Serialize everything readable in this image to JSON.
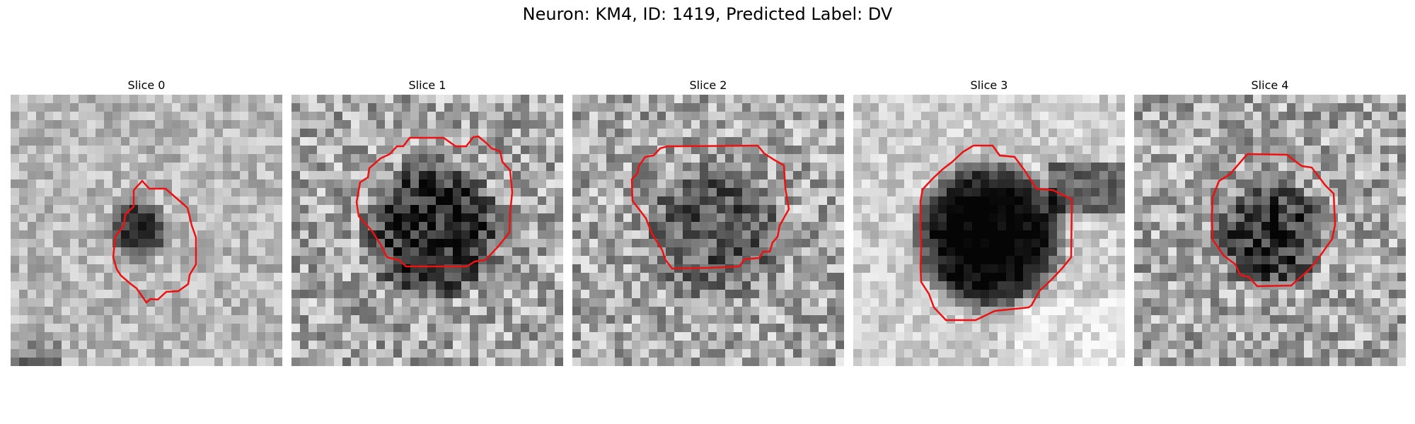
{
  "figure": {
    "title": "Neuron: KM4, ID: 1419, Predicted Label: DV"
  },
  "panels": [
    {
      "title": "Slice 0",
      "blob_darkness": 0.55,
      "blob_radius": 0.12,
      "background": "soft"
    },
    {
      "title": "Slice 1",
      "blob_darkness": 0.5,
      "blob_radius": 0.28,
      "background": "noisy"
    },
    {
      "title": "Slice 2",
      "blob_darkness": 0.3,
      "blob_radius": 0.28,
      "background": "noisy"
    },
    {
      "title": "Slice 3",
      "blob_darkness": 0.85,
      "blob_radius": 0.3,
      "background": "bright"
    },
    {
      "title": "Slice 4",
      "blob_darkness": 0.45,
      "blob_radius": 0.22,
      "background": "noisy"
    }
  ],
  "colors": {
    "contour": "#ee1111",
    "background": "#ffffff"
  }
}
